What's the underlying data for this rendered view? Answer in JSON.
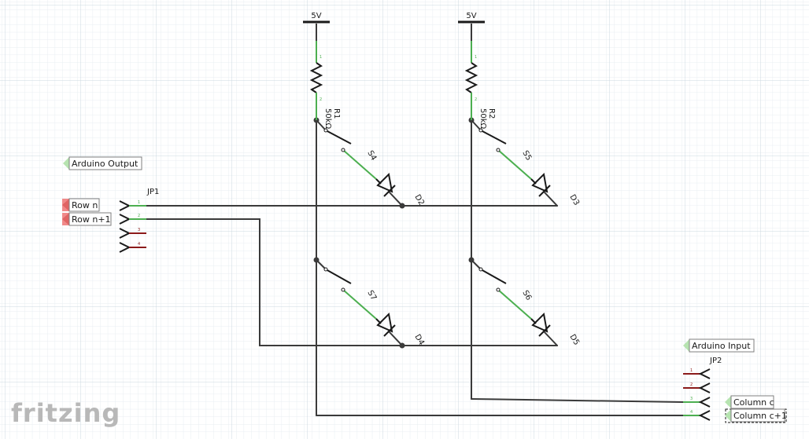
{
  "power": {
    "r1_supply": "5V",
    "r2_supply": "5V"
  },
  "resistors": [
    {
      "ref": "R1",
      "value": "50kΩ"
    },
    {
      "ref": "R2",
      "value": "50kΩ"
    }
  ],
  "switches": {
    "s4": "S4",
    "s5": "S5",
    "s6": "S6",
    "s7": "S7"
  },
  "diodes": {
    "d2": "D2",
    "d3": "D3",
    "d4": "D4",
    "d5": "D5"
  },
  "headers": {
    "jp1": "JP1",
    "jp2": "JP2"
  },
  "net_labels": {
    "arduino_output": "Arduino Output",
    "row_n": "Row n",
    "row_n1": "Row n+1",
    "arduino_input": "Arduino Input",
    "column_c": "Column c",
    "column_c1": "Column c+1"
  },
  "pin_numbers": {
    "p1": "1",
    "p2": "2",
    "p3": "3",
    "p4": "4"
  },
  "logo": "fritzing",
  "colors": {
    "grid_minor": "#e6ecf0",
    "grid_major": "#c9d6de",
    "wire": "#3a3a3a",
    "pin_connected": "#4caf50",
    "pin_unconnected": "#8b1a1a",
    "label_flag_green": "#b6e3b0",
    "label_flag_red": "#f08a8a",
    "logo": "#b5b5b5"
  }
}
